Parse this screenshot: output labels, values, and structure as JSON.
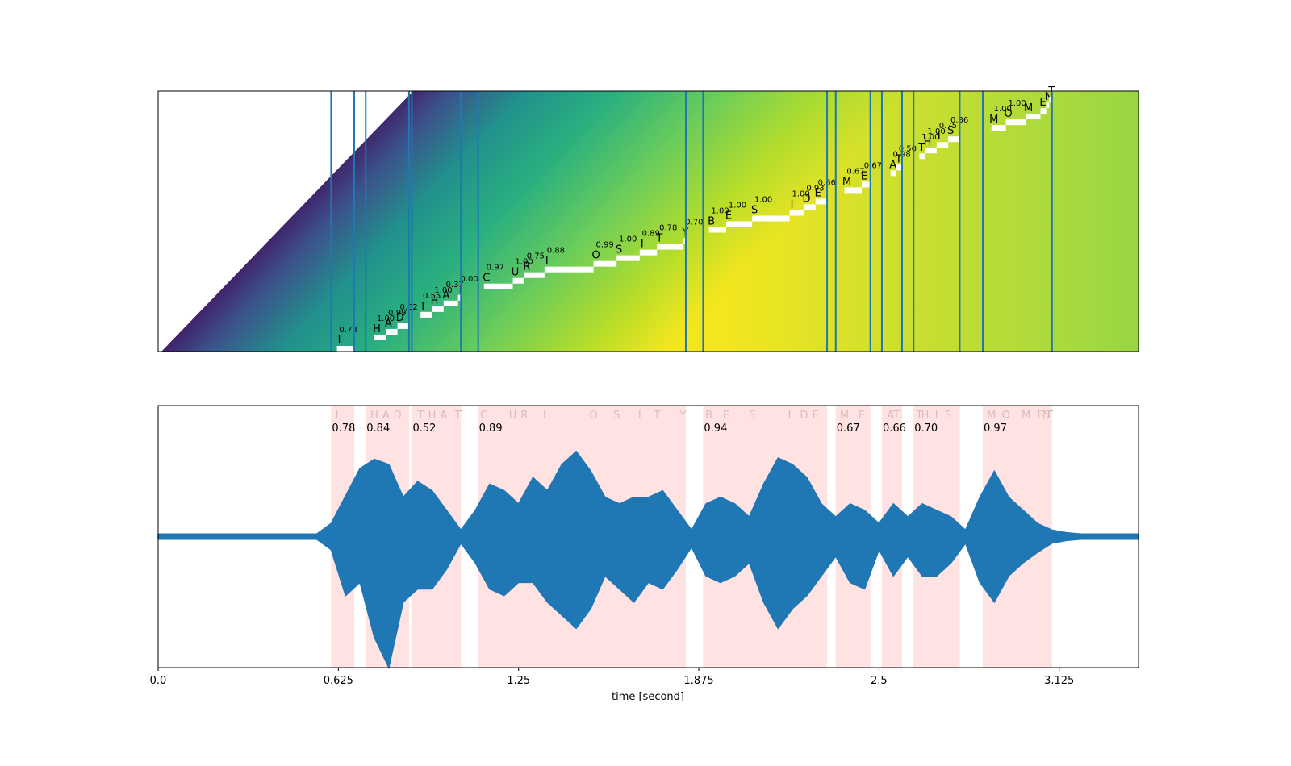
{
  "chart_data": {
    "type": "alignment",
    "xlabel": "time [second]",
    "xlim": [
      0,
      3.4
    ],
    "xticks": [
      {
        "value": 0,
        "label": "0.0"
      },
      0.625,
      1.25,
      1.875,
      2.5,
      3.125
    ],
    "line_color": "#1f77b4",
    "span_color": "#ffdddd",
    "words": [
      {
        "start": 0.6,
        "end": 0.68,
        "score": 0.78,
        "tokens": [
          {
            "char": "I",
            "score": 0.78,
            "time": 0.62
          }
        ]
      },
      {
        "start": 0.72,
        "end": 0.87,
        "score": 0.84,
        "tokens": [
          {
            "char": "H",
            "score": 1,
            "score_label": "1.00",
            "time": 0.75
          },
          {
            "char": "A",
            "score": 0.99,
            "time": 0.79
          },
          {
            "char": "D",
            "score": 0.62,
            "time": 0.83
          }
        ]
      },
      {
        "start": 0.88,
        "end": 1.05,
        "score": 0.52,
        "tokens": [
          {
            "char": "T",
            "score": 0.55,
            "time": 0.91
          },
          {
            "char": "H",
            "score": 1,
            "score_label": "1.00",
            "time": 0.95
          },
          {
            "char": "A",
            "score": 0.37,
            "time": 0.99
          },
          {
            "char": "T",
            "score": 0,
            "score_label": "0.00",
            "time": 1.04
          }
        ]
      },
      {
        "start": 1.11,
        "end": 1.83,
        "score": 0.89,
        "tokens": [
          {
            "char": "C",
            "score": 0.97,
            "time": 1.13
          },
          {
            "char": "U",
            "score": 1,
            "score_label": "1.00",
            "time": 1.23
          },
          {
            "char": "R",
            "score": 0.75,
            "time": 1.27
          },
          {
            "char": "I",
            "score": 0.88,
            "time": 1.34
          },
          {
            "char": "O",
            "score": 0.99,
            "time": 1.51
          },
          {
            "char": "S",
            "score": 1,
            "score_label": "1.00",
            "time": 1.59
          },
          {
            "char": "I",
            "score": 0.89,
            "time": 1.67
          },
          {
            "char": "T",
            "score": 0.78,
            "time": 1.73
          },
          {
            "char": "Y",
            "score": 0.7,
            "score_label": "0.70",
            "time": 1.82
          }
        ]
      },
      {
        "start": 1.89,
        "end": 2.32,
        "score": 0.94,
        "tokens": [
          {
            "char": "B",
            "score": 1,
            "score_label": "1.00",
            "time": 1.91
          },
          {
            "char": "E",
            "score": 1,
            "score_label": "1.00",
            "time": 1.97
          },
          {
            "char": "S",
            "score": 1,
            "score_label": "1.00",
            "time": 2.06
          },
          {
            "char": "I",
            "score": 1,
            "score_label": "1.00",
            "time": 2.19
          },
          {
            "char": "D",
            "score": 0.93,
            "time": 2.24
          },
          {
            "char": "E",
            "score": 0.66,
            "time": 2.28
          }
        ]
      },
      {
        "start": 2.35,
        "end": 2.47,
        "score": 0.67,
        "tokens": [
          {
            "char": "M",
            "score": 0.67,
            "time": 2.38
          },
          {
            "char": "E",
            "score": 0.67,
            "time": 2.44
          }
        ]
      },
      {
        "start": 2.51,
        "end": 2.58,
        "score": 0.66,
        "tokens": [
          {
            "char": "A",
            "score": 0.98,
            "time": 2.54
          },
          {
            "char": "T",
            "score": 0.5,
            "score_label": "0.50",
            "time": 2.56
          }
        ]
      },
      {
        "start": 2.62,
        "end": 2.78,
        "score": 0.7,
        "score_label": "0.70",
        "tokens": [
          {
            "char": "T",
            "score": 1,
            "score_label": "1.00",
            "time": 2.64
          },
          {
            "char": "H",
            "score": 1,
            "score_label": "1.00",
            "time": 2.66
          },
          {
            "char": "I",
            "score": 0.75,
            "time": 2.7
          },
          {
            "char": "S",
            "score": 0.36,
            "time": 2.74
          }
        ]
      },
      {
        "start": 2.86,
        "end": 3.1,
        "score": 0.97,
        "tokens": [
          {
            "char": "M",
            "score": 1,
            "score_label": "1.00",
            "time": 2.89
          },
          {
            "char": "O",
            "score": 1,
            "score_label": "1.00",
            "time": 2.94
          },
          {
            "char": "M",
            "score": null,
            "time": 3.01
          },
          {
            "char": "E",
            "score": null,
            "time": 3.06
          },
          {
            "char": "N",
            "score": null,
            "time": 3.08
          },
          {
            "char": "T",
            "score": null,
            "time": 3.09
          }
        ]
      }
    ],
    "waveform": {
      "ylim": [
        -1,
        1
      ],
      "x": [
        0,
        0.05,
        0.1,
        0.15,
        0.2,
        0.25,
        0.3,
        0.35,
        0.4,
        0.45,
        0.5,
        0.55,
        0.6,
        0.65,
        0.7,
        0.75,
        0.8,
        0.85,
        0.9,
        0.95,
        1,
        1.05,
        1.1,
        1.15,
        1.2,
        1.25,
        1.3,
        1.35,
        1.4,
        1.45,
        1.5,
        1.55,
        1.6,
        1.65,
        1.7,
        1.75,
        1.8,
        1.85,
        1.9,
        1.95,
        2,
        2.05,
        2.1,
        2.15,
        2.2,
        2.25,
        2.3,
        2.35,
        2.4,
        2.45,
        2.5,
        2.55,
        2.6,
        2.65,
        2.7,
        2.75,
        2.8,
        2.85,
        2.9,
        2.95,
        3,
        3.05,
        3.1,
        3.15,
        3.2,
        3.25,
        3.3,
        3.35,
        3.4
      ],
      "max": [
        0.02,
        0.02,
        0.02,
        0.02,
        0.02,
        0.02,
        0.02,
        0.02,
        0.02,
        0.02,
        0.02,
        0.02,
        0.1,
        0.31,
        0.52,
        0.59,
        0.55,
        0.3,
        0.42,
        0.35,
        0.2,
        0.05,
        0.2,
        0.4,
        0.35,
        0.25,
        0.45,
        0.35,
        0.55,
        0.65,
        0.5,
        0.3,
        0.25,
        0.3,
        0.3,
        0.35,
        0.2,
        0.05,
        0.25,
        0.3,
        0.25,
        0.15,
        0.4,
        0.6,
        0.55,
        0.45,
        0.25,
        0.15,
        0.25,
        0.2,
        0.1,
        0.25,
        0.15,
        0.25,
        0.2,
        0.15,
        0.05,
        0.3,
        0.5,
        0.3,
        0.2,
        0.1,
        0.05,
        0.03,
        0.02,
        0.02,
        0.02,
        0.02,
        0.02
      ],
      "min": [
        -0.02,
        -0.02,
        -0.02,
        -0.02,
        -0.02,
        -0.02,
        -0.02,
        -0.02,
        -0.02,
        -0.02,
        -0.02,
        -0.02,
        -0.1,
        -0.45,
        -0.35,
        -0.77,
        -1,
        -0.5,
        -0.4,
        -0.4,
        -0.25,
        -0.05,
        -0.2,
        -0.4,
        -0.45,
        -0.35,
        -0.35,
        -0.5,
        -0.6,
        -0.7,
        -0.55,
        -0.3,
        -0.4,
        -0.5,
        -0.35,
        -0.4,
        -0.25,
        -0.08,
        -0.3,
        -0.35,
        -0.3,
        -0.2,
        -0.5,
        -0.7,
        -0.55,
        -0.45,
        -0.3,
        -0.15,
        -0.35,
        -0.4,
        -0.1,
        -0.3,
        -0.15,
        -0.3,
        -0.3,
        -0.2,
        -0.05,
        -0.35,
        -0.5,
        -0.3,
        -0.2,
        -0.12,
        -0.05,
        -0.03,
        -0.02,
        -0.02,
        -0.02,
        -0.02,
        -0.02
      ]
    }
  }
}
